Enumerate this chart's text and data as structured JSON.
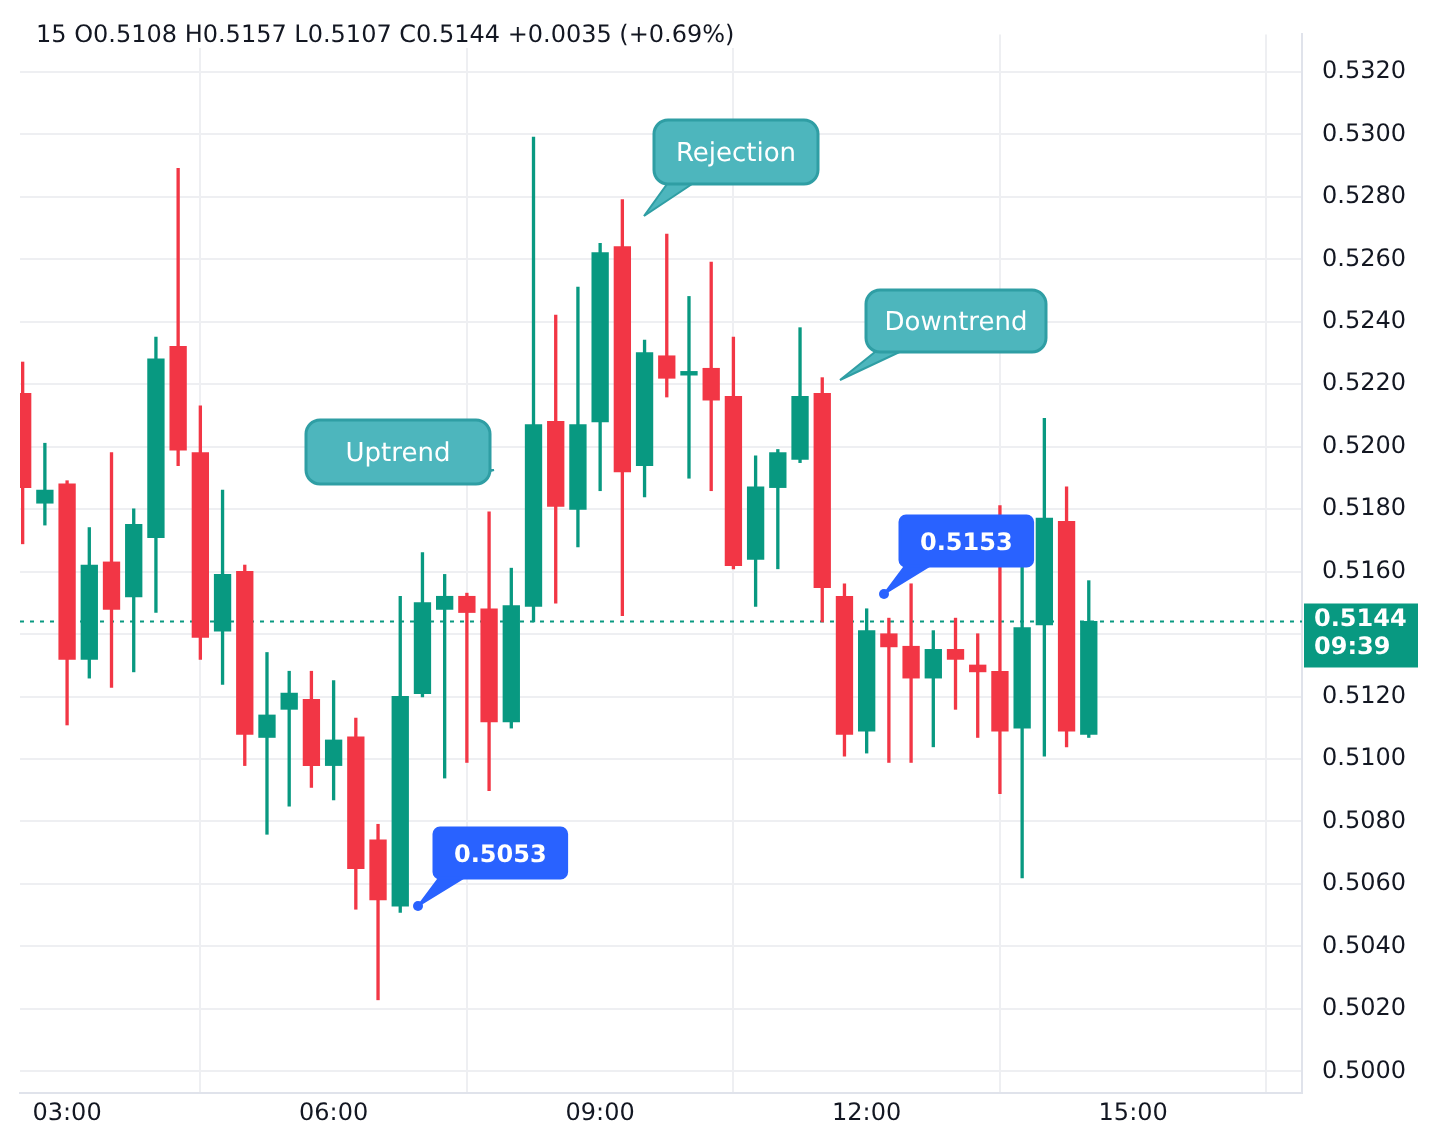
{
  "chart_data": {
    "type": "candlestick",
    "title": "15 O0.5108 H0.5157 L0.5107 C0.5144 +0.0035 (+0.69%)",
    "x": [
      2.5,
      2.75,
      3,
      3.25,
      3.5,
      3.75,
      4,
      4.25,
      4.5,
      4.75,
      5,
      5.25,
      5.5,
      5.75,
      6,
      6.25,
      6.5,
      6.75,
      7,
      7.25,
      7.5,
      7.75,
      8,
      8.25,
      8.5,
      8.75,
      9,
      9.25,
      9.5,
      9.75,
      10,
      10.25,
      10.5,
      10.75,
      11,
      11.25,
      11.5,
      11.75,
      12,
      12.25,
      12.5,
      12.75,
      13,
      13.25,
      13.5,
      13.75,
      14,
      14.25,
      14.5
    ],
    "ohlc": [
      [
        0.5217,
        0.5227,
        0.5169,
        0.5187
      ],
      [
        0.5182,
        0.5201,
        0.5175,
        0.5186
      ],
      [
        0.5188,
        0.5189,
        0.5111,
        0.5132
      ],
      [
        0.5132,
        0.5174,
        0.5126,
        0.5162
      ],
      [
        0.5163,
        0.5198,
        0.5123,
        0.5148
      ],
      [
        0.5152,
        0.518,
        0.5128,
        0.5175
      ],
      [
        0.5171,
        0.5235,
        0.5147,
        0.5228
      ],
      [
        0.5232,
        0.5289,
        0.5194,
        0.5199
      ],
      [
        0.5198,
        0.5213,
        0.5132,
        0.5139
      ],
      [
        0.5141,
        0.5186,
        0.5124,
        0.5159
      ],
      [
        0.516,
        0.5162,
        0.5098,
        0.5108
      ],
      [
        0.5107,
        0.5134,
        0.5076,
        0.5114
      ],
      [
        0.5116,
        0.5128,
        0.5085,
        0.5121
      ],
      [
        0.5119,
        0.5128,
        0.5091,
        0.5098
      ],
      [
        0.5098,
        0.5125,
        0.5087,
        0.5106
      ],
      [
        0.5107,
        0.5113,
        0.5052,
        0.5065
      ],
      [
        0.5074,
        0.5079,
        0.5023,
        0.5055
      ],
      [
        0.5053,
        0.5152,
        0.5051,
        0.512
      ],
      [
        0.5121,
        0.5166,
        0.512,
        0.515
      ],
      [
        0.5148,
        0.5159,
        0.5094,
        0.5152
      ],
      [
        0.5152,
        0.5153,
        0.5099,
        0.5147
      ],
      [
        0.5148,
        0.5179,
        0.509,
        0.5112
      ],
      [
        0.5112,
        0.5161,
        0.511,
        0.5149
      ],
      [
        0.5149,
        0.5299,
        0.5144,
        0.5207
      ],
      [
        0.5208,
        0.5242,
        0.515,
        0.5181
      ],
      [
        0.518,
        0.5251,
        0.5168,
        0.5207
      ],
      [
        0.5208,
        0.5265,
        0.5186,
        0.5262
      ],
      [
        0.5264,
        0.5279,
        0.5146,
        0.5192
      ],
      [
        0.5194,
        0.5234,
        0.5184,
        0.523
      ],
      [
        0.5229,
        0.5268,
        0.5216,
        0.5222
      ],
      [
        0.5223,
        0.5248,
        0.519,
        0.5224
      ],
      [
        0.5225,
        0.5259,
        0.5186,
        0.5215
      ],
      [
        0.5216,
        0.5235,
        0.5161,
        0.5162
      ],
      [
        0.5164,
        0.5197,
        0.5149,
        0.5187
      ],
      [
        0.5187,
        0.5199,
        0.5161,
        0.5198
      ],
      [
        0.5196,
        0.5238,
        0.5195,
        0.5216
      ],
      [
        0.5217,
        0.5222,
        0.5144,
        0.5155
      ],
      [
        0.5152,
        0.5156,
        0.5101,
        0.5108
      ],
      [
        0.5109,
        0.5148,
        0.5102,
        0.5141
      ],
      [
        0.514,
        0.5145,
        0.5099,
        0.5136
      ],
      [
        0.5136,
        0.5156,
        0.5099,
        0.5126
      ],
      [
        0.5126,
        0.5141,
        0.5104,
        0.5135
      ],
      [
        0.5135,
        0.5145,
        0.5116,
        0.5132
      ],
      [
        0.513,
        0.514,
        0.5107,
        0.5128
      ],
      [
        0.5128,
        0.5181,
        0.5089,
        0.5109
      ],
      [
        0.511,
        0.5163,
        0.5062,
        0.5142
      ],
      [
        0.5143,
        0.5209,
        0.5101,
        0.5177
      ],
      [
        0.5176,
        0.5187,
        0.5104,
        0.5109
      ],
      [
        0.5108,
        0.5157,
        0.5107,
        0.5144
      ]
    ],
    "colors": [
      "#f23645",
      "#089981",
      "#f23645",
      "#089981",
      "#f23645",
      "#089981",
      "#089981",
      "#f23645",
      "#f23645",
      "#089981",
      "#f23645",
      "#089981",
      "#089981",
      "#f23645",
      "#089981",
      "#f23645",
      "#f23645",
      "#089981",
      "#089981",
      "#089981",
      "#f23645",
      "#f23645",
      "#089981",
      "#089981",
      "#f23645",
      "#089981",
      "#089981",
      "#f23645",
      "#089981",
      "#f23645",
      "#089981",
      "#f23645",
      "#f23645",
      "#089981",
      "#089981",
      "#089981",
      "#f23645",
      "#f23645",
      "#089981",
      "#f23645",
      "#f23645",
      "#089981",
      "#f23645",
      "#f23645",
      "#f23645",
      "#089981",
      "#089981",
      "#f23645",
      "#089981"
    ],
    "xlim": [
      2.47,
      16.9
    ],
    "xticks": [
      {
        "value": 3,
        "label": "03:00"
      },
      {
        "value": 6,
        "label": "06:00"
      },
      {
        "value": 9,
        "label": "09:00"
      },
      {
        "value": 12,
        "label": "12:00"
      },
      {
        "value": 15,
        "label": "15:00"
      }
    ],
    "ylim": [
      0.4993,
      0.5332
    ],
    "yticks": [
      {
        "value": 0.5,
        "label": "0.5000"
      },
      {
        "value": 0.502,
        "label": "0.5020"
      },
      {
        "value": 0.504,
        "label": "0.5040"
      },
      {
        "value": 0.506,
        "label": "0.5060"
      },
      {
        "value": 0.508,
        "label": "0.5080"
      },
      {
        "value": 0.51,
        "label": "0.5100"
      },
      {
        "value": 0.512,
        "label": "0.5120"
      },
      {
        "value": 0.514,
        "label": null
      },
      {
        "value": 0.516,
        "label": "0.5160"
      },
      {
        "value": 0.518,
        "label": "0.5180"
      },
      {
        "value": 0.52,
        "label": "0.5200"
      },
      {
        "value": 0.522,
        "label": "0.5220"
      },
      {
        "value": 0.524,
        "label": "0.5240"
      },
      {
        "value": 0.526,
        "label": "0.5260"
      },
      {
        "value": 0.528,
        "label": "0.5280"
      },
      {
        "value": 0.53,
        "label": "0.5300"
      },
      {
        "value": 0.532,
        "label": "0.5320"
      }
    ],
    "grid": true,
    "legend": false,
    "ref_lines": [
      {
        "axis": "y",
        "value": 0.5144,
        "label": "0.5144 09:39",
        "color": "#089981",
        "line_style": "dotted"
      }
    ],
    "annotations": [
      "Uptrend",
      "Rejection",
      "Downtrend",
      {
        "text": "0.5053",
        "x": 6.95,
        "y": 0.5053
      },
      {
        "text": "0.5153",
        "x": 12.2,
        "y": 0.5153
      }
    ]
  }
}
